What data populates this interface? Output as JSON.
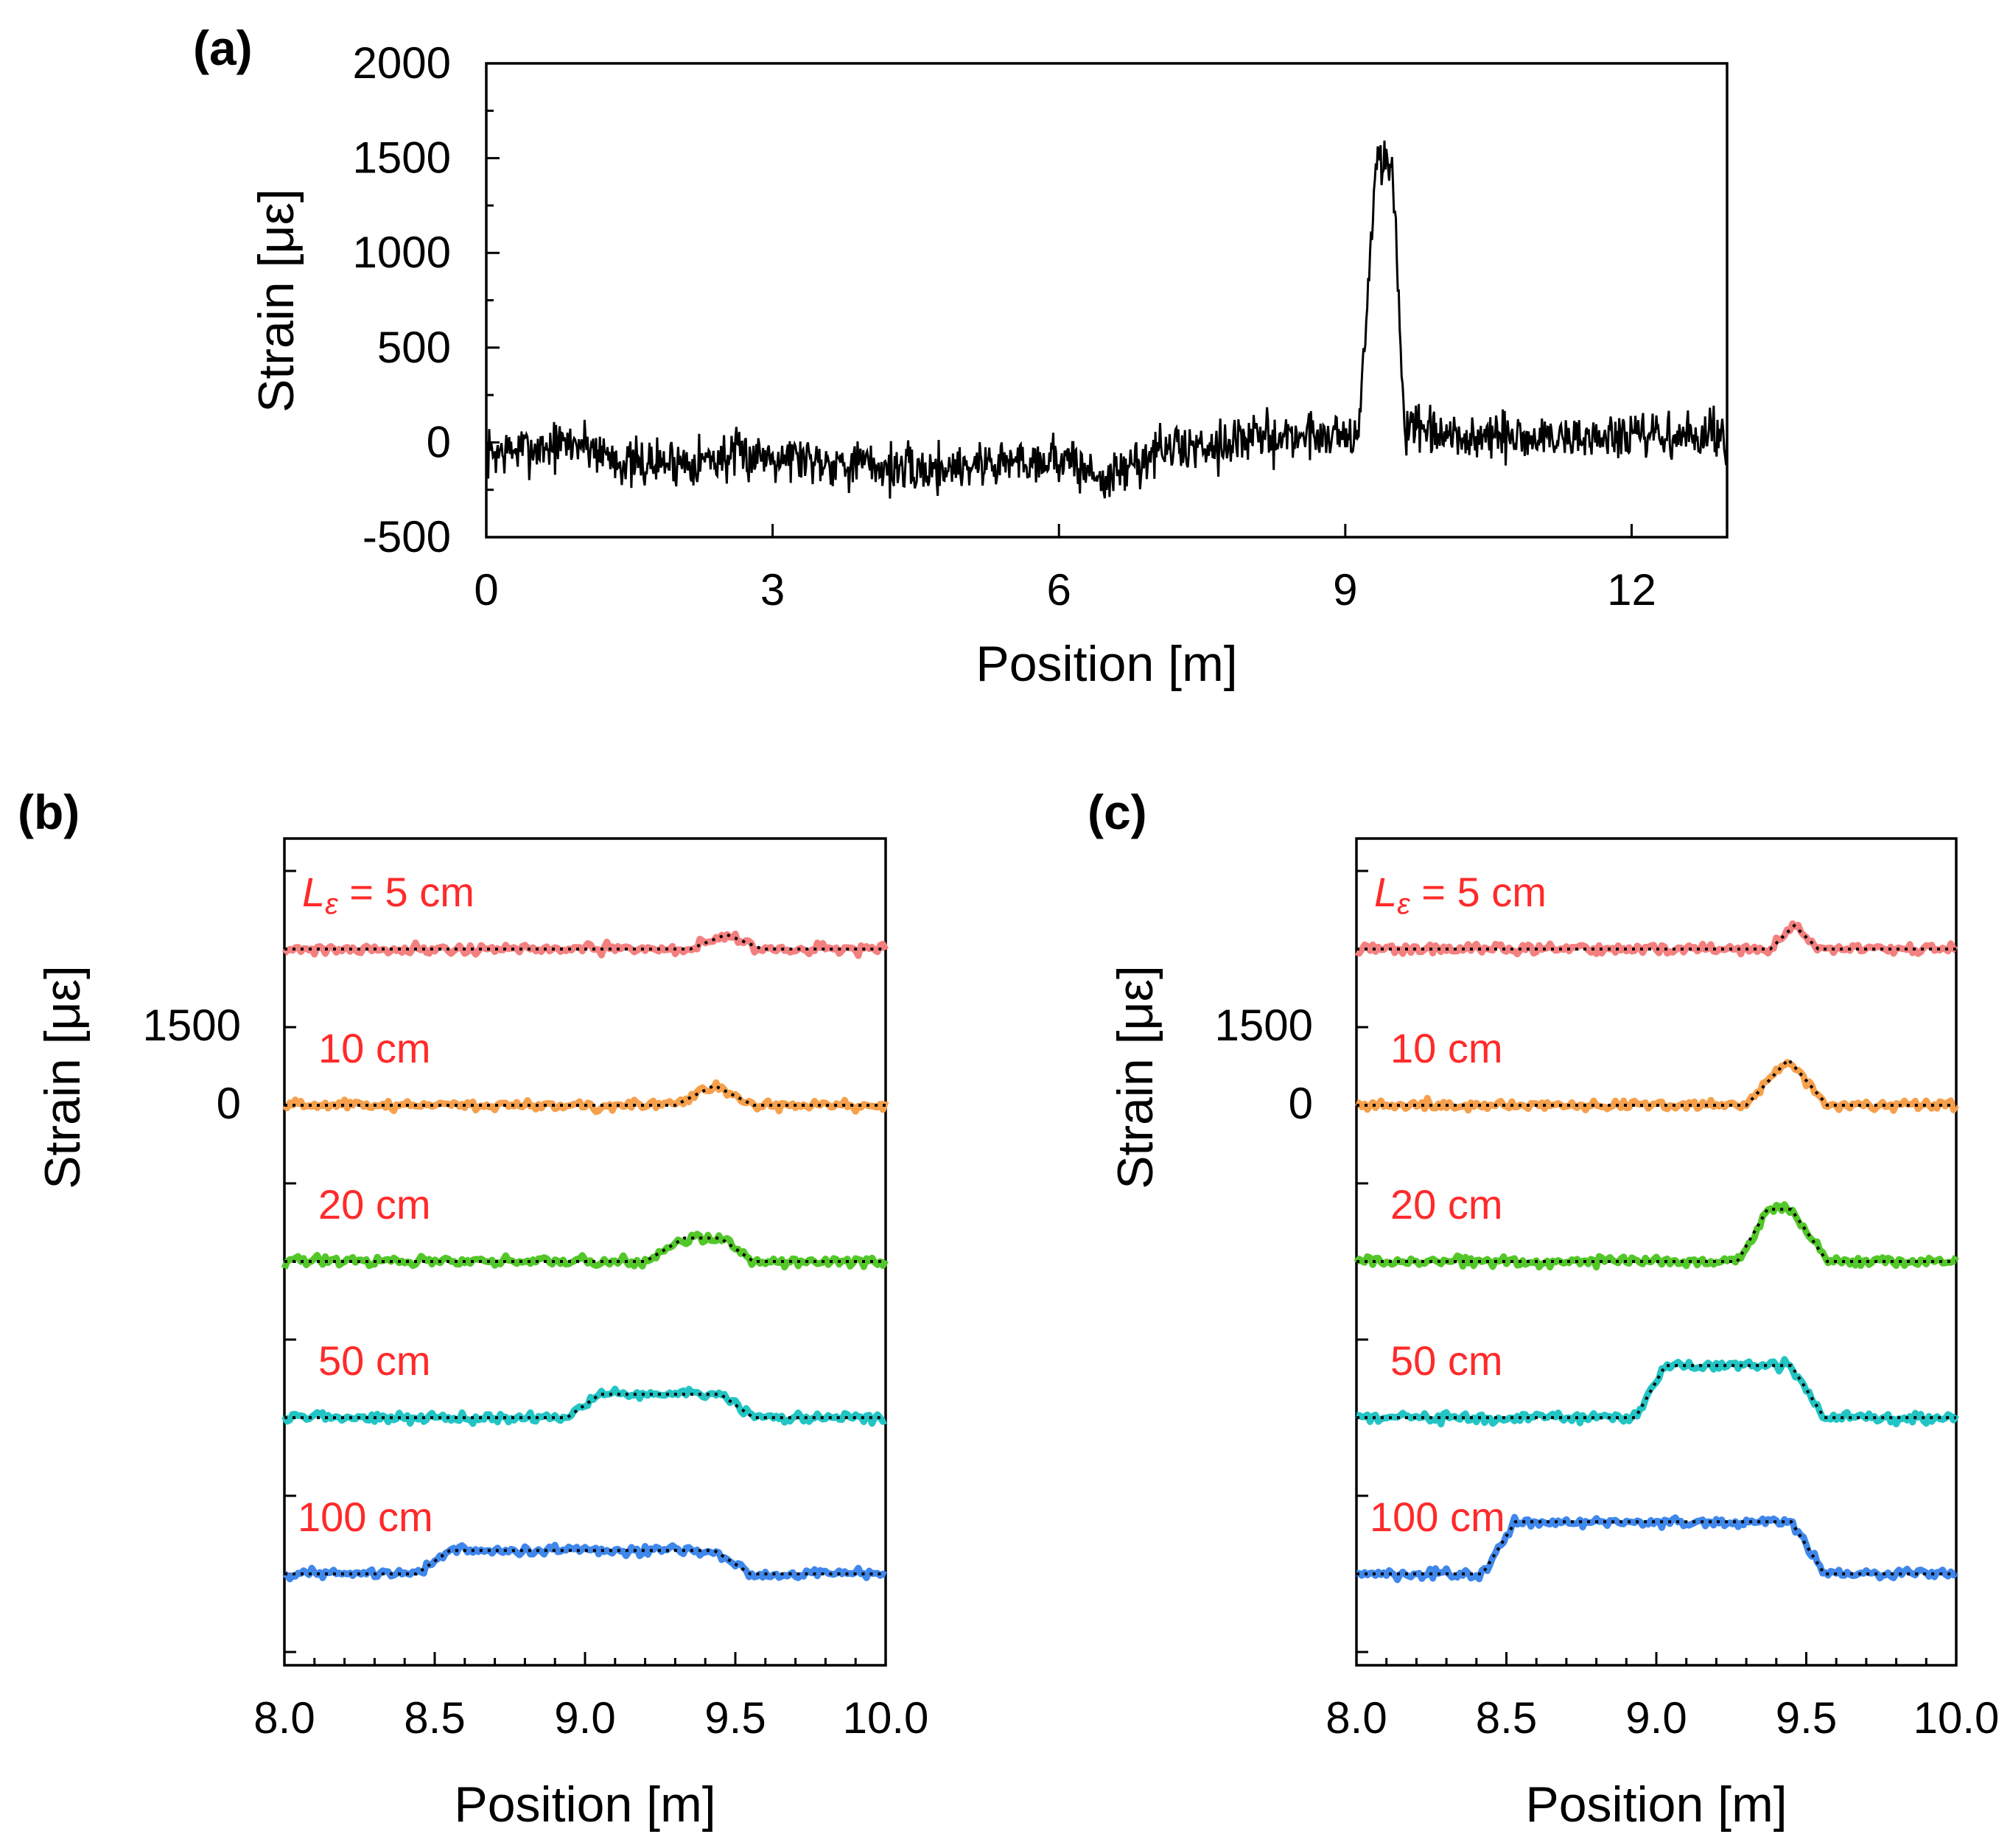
{
  "chart_data": [
    {
      "panel": "(a)",
      "type": "line",
      "xlabel": "Position [m]",
      "ylabel": "Strain [με]",
      "xlim": [
        0,
        13
      ],
      "ylim": [
        -500,
        2000
      ],
      "xticks": [
        0,
        3,
        6,
        9,
        12
      ],
      "yticks": [
        2000,
        1500,
        1000,
        500,
        0,
        -500
      ],
      "series": [
        {
          "name": "strain",
          "color": "#000000",
          "noise_amplitude": 130,
          "profile": [
            [
              0,
              -60
            ],
            [
              1,
              0
            ],
            [
              1.5,
              -120
            ],
            [
              3,
              -60
            ],
            [
              4.5,
              -150
            ],
            [
              5,
              -120
            ],
            [
              6,
              -80
            ],
            [
              6.5,
              -200
            ],
            [
              7,
              -50
            ],
            [
              8,
              20
            ],
            [
              9,
              50
            ],
            [
              9.15,
              50
            ],
            [
              9.32,
              1500
            ],
            [
              9.5,
              1420
            ],
            [
              9.62,
              80
            ],
            [
              10,
              20
            ],
            [
              13,
              30
            ]
          ]
        }
      ]
    },
    {
      "panel": "(b)",
      "type": "line",
      "xlabel": "Position [m]",
      "ylabel": "Strain [με]",
      "xlim": [
        8.0,
        10.0
      ],
      "xtick_labels": [
        "8.0",
        "8.5",
        "9.0",
        "9.5",
        "10.0"
      ],
      "ytick_labels": [
        "1500",
        "0"
      ],
      "series": [
        {
          "name": "5 cm",
          "label": "Lε = 5 cm",
          "color": "#f47f7f",
          "offset_ticks": 2,
          "model": [
            [
              8.0,
              0
            ],
            [
              9.35,
              0
            ],
            [
              9.47,
              280
            ],
            [
              9.59,
              0
            ],
            [
              10.0,
              0
            ]
          ]
        },
        {
          "name": "10 cm",
          "label": "10 cm",
          "color": "#f7a04c",
          "offset_ticks": 0,
          "model": [
            [
              8.0,
              0
            ],
            [
              9.3,
              0
            ],
            [
              9.43,
              380
            ],
            [
              9.56,
              0
            ],
            [
              10.0,
              0
            ]
          ]
        },
        {
          "name": "20 cm",
          "label": "20 cm",
          "color": "#53c729",
          "offset_ticks": -2,
          "model": [
            [
              8.0,
              0
            ],
            [
              9.2,
              0
            ],
            [
              9.33,
              450
            ],
            [
              9.45,
              450
            ],
            [
              9.56,
              0
            ],
            [
              10.0,
              0
            ]
          ]
        },
        {
          "name": "50 cm",
          "label": "50 cm",
          "color": "#23c4c4",
          "offset_ticks": -4,
          "model": [
            [
              8.0,
              0
            ],
            [
              8.94,
              0
            ],
            [
              9.05,
              450
            ],
            [
              9.45,
              450
            ],
            [
              9.56,
              0
            ],
            [
              10.0,
              0
            ]
          ]
        },
        {
          "name": "100 cm",
          "label": "100 cm",
          "color": "#3f87eb",
          "offset_ticks": -6,
          "model": [
            [
              8.0,
              0
            ],
            [
              8.44,
              0
            ],
            [
              8.55,
              450
            ],
            [
              9.43,
              450
            ],
            [
              9.55,
              0
            ],
            [
              10.0,
              0
            ]
          ]
        }
      ]
    },
    {
      "panel": "(c)",
      "type": "line",
      "xlabel": "Position [m]",
      "ylabel": "Strain [με]",
      "xlim": [
        8.0,
        10.0
      ],
      "xtick_labels": [
        "8.0",
        "8.5",
        "9.0",
        "9.5",
        "10.0"
      ],
      "ytick_labels": [
        "1500",
        "0"
      ],
      "series": [
        {
          "name": "5 cm",
          "label": "Lε = 5 cm",
          "color": "#f47f7f",
          "offset_ticks": 2,
          "model": [
            [
              8.0,
              0
            ],
            [
              9.38,
              0
            ],
            [
              9.46,
              450
            ],
            [
              9.54,
              0
            ],
            [
              10.0,
              0
            ]
          ]
        },
        {
          "name": "10 cm",
          "label": "10 cm",
          "color": "#f7a04c",
          "offset_ticks": 0,
          "model": [
            [
              8.0,
              0
            ],
            [
              9.3,
              0
            ],
            [
              9.44,
              880
            ],
            [
              9.57,
              0
            ],
            [
              10.0,
              0
            ]
          ]
        },
        {
          "name": "20 cm",
          "label": "20 cm",
          "color": "#53c729",
          "offset_ticks": -2,
          "model": [
            [
              8.0,
              0
            ],
            [
              9.27,
              0
            ],
            [
              9.37,
              1000
            ],
            [
              9.45,
              1000
            ],
            [
              9.57,
              0
            ],
            [
              10.0,
              0
            ]
          ]
        },
        {
          "name": "50 cm",
          "label": "50 cm",
          "color": "#23c4c4",
          "offset_ticks": -4,
          "model": [
            [
              8.0,
              0
            ],
            [
              8.93,
              0
            ],
            [
              9.03,
              1000
            ],
            [
              9.45,
              1000
            ],
            [
              9.56,
              0
            ],
            [
              10.0,
              0
            ]
          ]
        },
        {
          "name": "100 cm",
          "label": "100 cm",
          "color": "#3f87eb",
          "offset_ticks": -6,
          "model": [
            [
              8.0,
              0
            ],
            [
              8.42,
              0
            ],
            [
              8.53,
              1000
            ],
            [
              9.45,
              1000
            ],
            [
              9.56,
              0
            ],
            [
              10.0,
              0
            ]
          ]
        }
      ]
    }
  ]
}
